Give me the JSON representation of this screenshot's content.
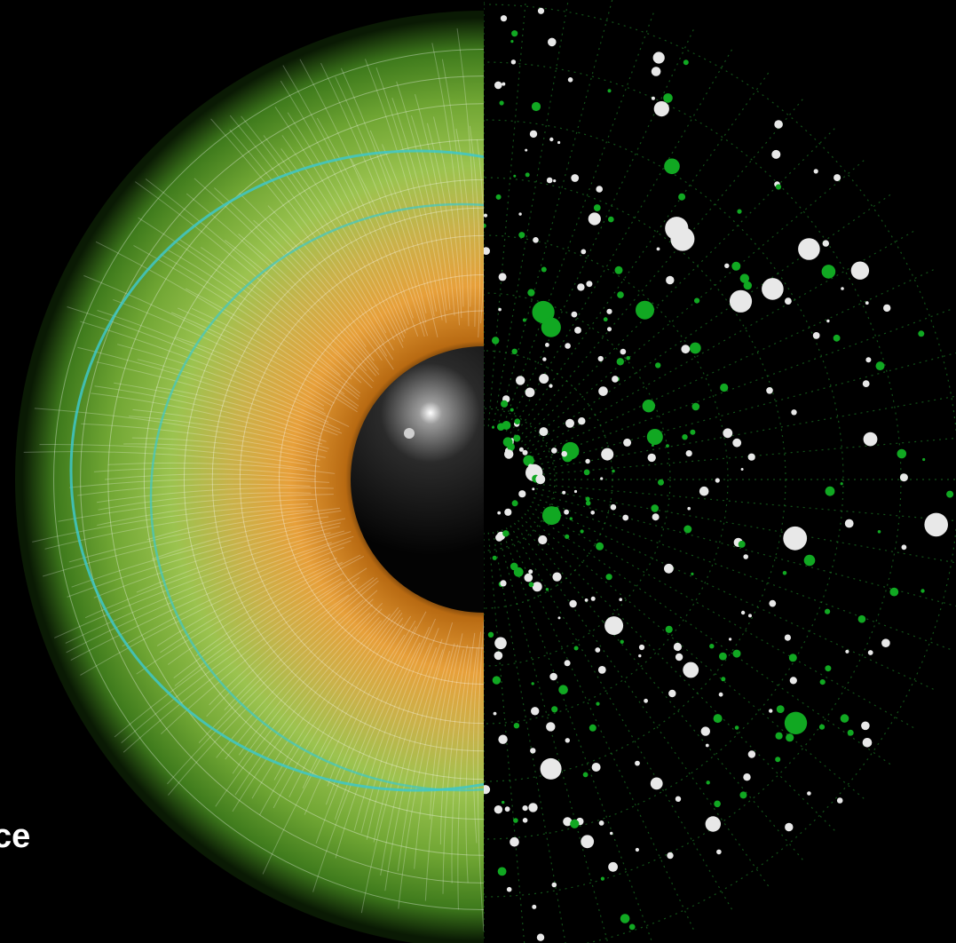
{
  "caption": {
    "text": "ce"
  },
  "illustration": {
    "left_half": "eye-iris-icon",
    "right_half": "polar-data-visualization-icon",
    "colors": {
      "background": "#000000",
      "iris_outer": "#6fa533",
      "iris_inner": "#e39a2a",
      "pupil": "#050505",
      "accent_line": "#3ec7c9",
      "data_green": "#11a822",
      "data_white": "#e8e8e8"
    }
  }
}
